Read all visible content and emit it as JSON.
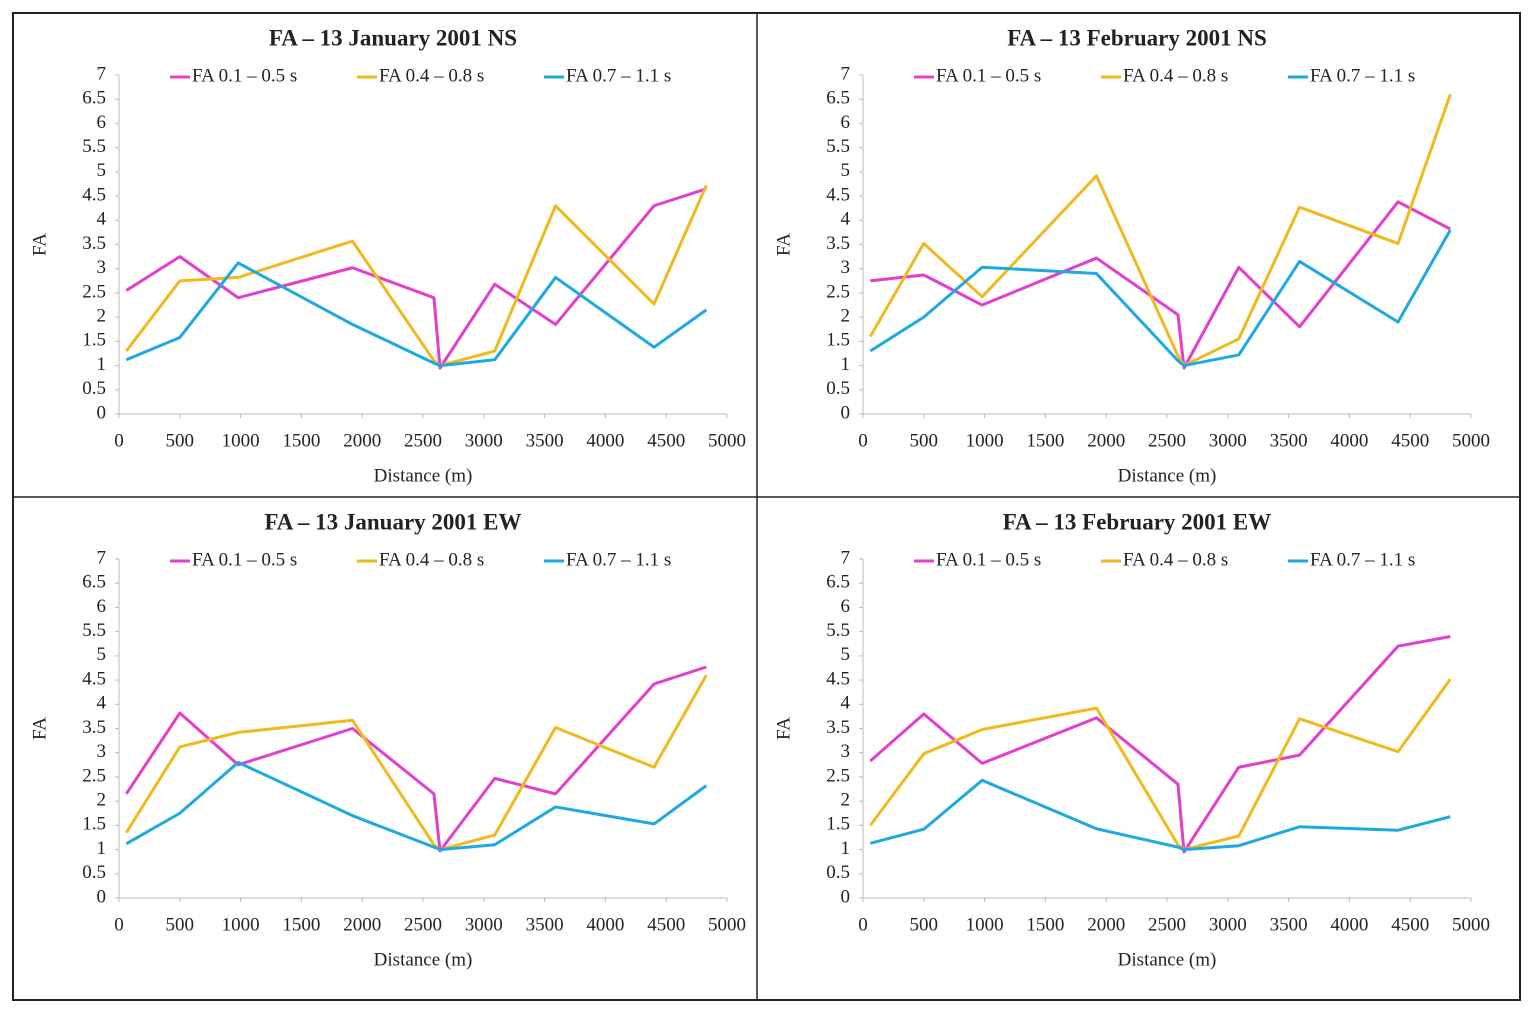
{
  "chart_data": [
    {
      "type": "line",
      "title": "FA – 13 January 2001 NS",
      "x_label": "Distance (m)",
      "y_label": "FA",
      "x": [
        60,
        500,
        980,
        1920,
        2590,
        2640,
        3090,
        3590,
        4400,
        4830
      ],
      "series": [
        {
          "name": "FA 0.1 – 0.5 s",
          "color": "#e33fcf",
          "values": [
            2.55,
            3.25,
            2.4,
            3.02,
            2.4,
            0.95,
            2.68,
            1.85,
            4.3,
            4.65
          ]
        },
        {
          "name": "FA 0.4 – 0.8 s",
          "color": "#f2b91e",
          "values": [
            1.3,
            2.75,
            2.82,
            3.57,
            1.1,
            1.0,
            1.3,
            4.3,
            2.27,
            4.72
          ]
        },
        {
          "name": "FA 0.7 – 1.1 s",
          "color": "#1fa9e1",
          "values": [
            1.12,
            1.58,
            3.12,
            1.85,
            1.05,
            1.0,
            1.12,
            2.82,
            1.38,
            2.15
          ]
        }
      ],
      "xlim": [
        0,
        5000
      ],
      "xticks": [
        0,
        500,
        1000,
        1500,
        2000,
        2500,
        3000,
        3500,
        4000,
        4500,
        5000
      ],
      "ylim": [
        0,
        7
      ],
      "yticks": [
        0,
        0.5,
        1,
        1.5,
        2,
        2.5,
        3,
        3.5,
        4,
        4.5,
        5,
        5.5,
        6,
        6.5,
        7
      ],
      "grid": false
    },
    {
      "type": "line",
      "title": "FA – 13 February 2001 NS",
      "x_label": "Distance (m)",
      "y_label": "FA",
      "x": [
        60,
        500,
        980,
        1920,
        2590,
        2640,
        3090,
        3590,
        4400,
        4830
      ],
      "series": [
        {
          "name": "FA 0.1 – 0.5 s",
          "color": "#e33fcf",
          "values": [
            2.75,
            2.87,
            2.25,
            3.22,
            2.05,
            0.95,
            3.03,
            1.8,
            4.38,
            3.82
          ]
        },
        {
          "name": "FA 0.4 – 0.8 s",
          "color": "#f2b91e",
          "values": [
            1.6,
            3.52,
            2.42,
            4.92,
            1.2,
            1.0,
            1.55,
            4.27,
            3.52,
            6.6
          ]
        },
        {
          "name": "FA 0.7 – 1.1 s",
          "color": "#1fa9e1",
          "values": [
            1.3,
            2.0,
            3.03,
            2.9,
            1.1,
            1.0,
            1.22,
            3.15,
            1.9,
            3.8
          ]
        }
      ],
      "xlim": [
        0,
        5000
      ],
      "xticks": [
        0,
        500,
        1000,
        1500,
        2000,
        2500,
        3000,
        3500,
        4000,
        4500,
        5000
      ],
      "ylim": [
        0,
        7
      ],
      "yticks": [
        0,
        0.5,
        1,
        1.5,
        2,
        2.5,
        3,
        3.5,
        4,
        4.5,
        5,
        5.5,
        6,
        6.5,
        7
      ],
      "grid": false
    },
    {
      "type": "line",
      "title": "FA – 13 January 2001 EW",
      "x_label": "Distance (m)",
      "y_label": "FA",
      "x": [
        60,
        500,
        980,
        1920,
        2590,
        2640,
        3090,
        3590,
        4400,
        4830
      ],
      "series": [
        {
          "name": "FA 0.1 – 0.5 s",
          "color": "#e33fcf",
          "values": [
            2.15,
            3.82,
            2.75,
            3.5,
            2.15,
            0.97,
            2.47,
            2.15,
            4.42,
            4.77
          ]
        },
        {
          "name": "FA 0.4 – 0.8 s",
          "color": "#f2b91e",
          "values": [
            1.35,
            3.12,
            3.42,
            3.67,
            1.1,
            1.0,
            1.3,
            3.52,
            2.7,
            4.6
          ]
        },
        {
          "name": "FA 0.7 – 1.1 s",
          "color": "#1fa9e1",
          "values": [
            1.12,
            1.75,
            2.8,
            1.7,
            1.05,
            1.0,
            1.1,
            1.88,
            1.53,
            2.32
          ]
        }
      ],
      "xlim": [
        0,
        5000
      ],
      "xticks": [
        0,
        500,
        1000,
        1500,
        2000,
        2500,
        3000,
        3500,
        4000,
        4500,
        5000
      ],
      "ylim": [
        0,
        7
      ],
      "yticks": [
        0,
        0.5,
        1,
        1.5,
        2,
        2.5,
        3,
        3.5,
        4,
        4.5,
        5,
        5.5,
        6,
        6.5,
        7
      ],
      "grid": false
    },
    {
      "type": "line",
      "title": "FA – 13 February 2001 EW",
      "x_label": "Distance (m)",
      "y_label": "FA",
      "x": [
        60,
        500,
        980,
        1920,
        2590,
        2640,
        3090,
        3590,
        4400,
        4830
      ],
      "series": [
        {
          "name": "FA 0.1 – 0.5 s",
          "color": "#e33fcf",
          "values": [
            2.83,
            3.8,
            2.78,
            3.72,
            2.35,
            0.95,
            2.7,
            2.95,
            5.2,
            5.4
          ]
        },
        {
          "name": "FA 0.4 – 0.8 s",
          "color": "#f2b91e",
          "values": [
            1.5,
            2.98,
            3.48,
            3.92,
            1.1,
            1.0,
            1.28,
            3.7,
            3.02,
            4.52
          ]
        },
        {
          "name": "FA 0.7 – 1.1 s",
          "color": "#1fa9e1",
          "values": [
            1.13,
            1.42,
            2.43,
            1.43,
            1.05,
            1.0,
            1.08,
            1.47,
            1.4,
            1.68
          ]
        }
      ],
      "xlim": [
        0,
        5000
      ],
      "xticks": [
        0,
        500,
        1000,
        1500,
        2000,
        2500,
        3000,
        3500,
        4000,
        4500,
        5000
      ],
      "ylim": [
        0,
        7
      ],
      "yticks": [
        0,
        0.5,
        1,
        1.5,
        2,
        2.5,
        3,
        3.5,
        4,
        4.5,
        5,
        5.5,
        6,
        6.5,
        7
      ],
      "grid": false
    }
  ]
}
